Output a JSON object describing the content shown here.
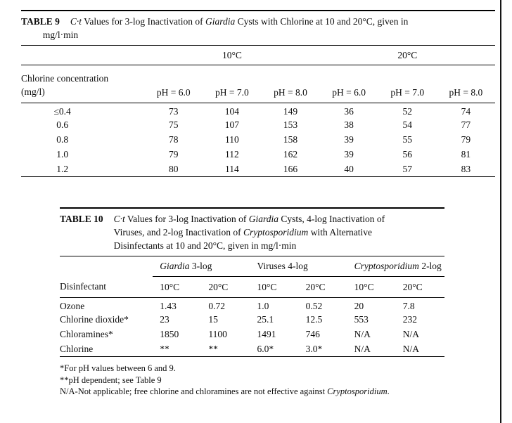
{
  "colors": {
    "rule": "#000000",
    "text": "#0d0d0d",
    "background": "#ffffff"
  },
  "table9": {
    "label": "TABLE 9",
    "caption_lines": [
      [
        {
          "t": "C·t",
          "i": true
        },
        {
          "t": " Values for 3-log Inactivation of ",
          "i": false
        },
        {
          "t": "Giardia",
          "i": true
        },
        {
          "t": " Cysts with Chlorine at 10 and 20°C, given in",
          "i": false
        }
      ],
      [
        {
          "t": "mg/l·min",
          "i": false
        }
      ]
    ],
    "temp_groups": [
      "10°C",
      "20°C"
    ],
    "row_header_line1": "Chlorine concentration",
    "row_header_line2": "(mg/l)",
    "col_headers": [
      "pH = 6.0",
      "pH = 7.0",
      "pH = 8.0",
      "pH = 6.0",
      "pH = 7.0",
      "pH = 8.0"
    ],
    "rows": [
      {
        "label": "≤0.4",
        "values": [
          "73",
          "104",
          "149",
          "36",
          "52",
          "74"
        ]
      },
      {
        "label": "0.6",
        "values": [
          "75",
          "107",
          "153",
          "38",
          "54",
          "77"
        ]
      },
      {
        "label": "0.8",
        "values": [
          "78",
          "110",
          "158",
          "39",
          "55",
          "79"
        ]
      },
      {
        "label": "1.0",
        "values": [
          "79",
          "112",
          "162",
          "39",
          "56",
          "81"
        ]
      },
      {
        "label": "1.2",
        "values": [
          "80",
          "114",
          "166",
          "40",
          "57",
          "83"
        ]
      }
    ]
  },
  "table10": {
    "label": "TABLE 10",
    "caption_lines": [
      [
        {
          "t": "C·t",
          "i": true
        },
        {
          "t": " Values for 3-log Inactivation of ",
          "i": false
        },
        {
          "t": "Giardia",
          "i": true
        },
        {
          "t": " Cysts, 4-log Inactivation of",
          "i": false
        }
      ],
      [
        {
          "t": "Viruses, and 2-log Inactivation of ",
          "i": false
        },
        {
          "t": "Cryptosporidium",
          "i": true
        },
        {
          "t": " with Alternative",
          "i": false
        }
      ],
      [
        {
          "t": "Disinfectants at 10 and 20°C, given in mg/l·min",
          "i": false
        }
      ]
    ],
    "groups": [
      [
        {
          "t": "Giardia",
          "i": true
        },
        {
          "t": " 3-log",
          "i": false
        }
      ],
      [
        {
          "t": "Viruses 4-log",
          "i": false
        }
      ],
      [
        {
          "t": "Cryptosporidium",
          "i": true
        },
        {
          "t": " 2-log",
          "i": false
        }
      ]
    ],
    "col_label": "Disinfectant",
    "temp_headers": [
      "10°C",
      "20°C",
      "10°C",
      "20°C",
      "10°C",
      "20°C"
    ],
    "rows": [
      {
        "label": "Ozone",
        "values": [
          "1.43",
          "0.72",
          "1.0",
          "0.52",
          "20",
          "7.8"
        ]
      },
      {
        "label": "Chlorine dioxide*",
        "values": [
          "23",
          "15",
          "25.1",
          "12.5",
          "553",
          "232"
        ]
      },
      {
        "label": "Chloramines*",
        "values": [
          "1850",
          "1100",
          "1491",
          "746",
          "N/A",
          "N/A"
        ]
      },
      {
        "label": "Chlorine",
        "values": [
          "**",
          "**",
          "6.0*",
          "3.0*",
          "N/A",
          "N/A"
        ]
      }
    ],
    "footnotes": [
      [
        {
          "t": "*For pH values between 6 and 9.",
          "i": false
        }
      ],
      [
        {
          "t": "**pH dependent; see Table 9",
          "i": false
        }
      ],
      [
        {
          "t": "N/A-Not applicable; free chlorine and chloramines are not effective against ",
          "i": false
        },
        {
          "t": "Cryptosporidium",
          "i": true
        },
        {
          "t": ".",
          "i": false
        }
      ]
    ]
  }
}
